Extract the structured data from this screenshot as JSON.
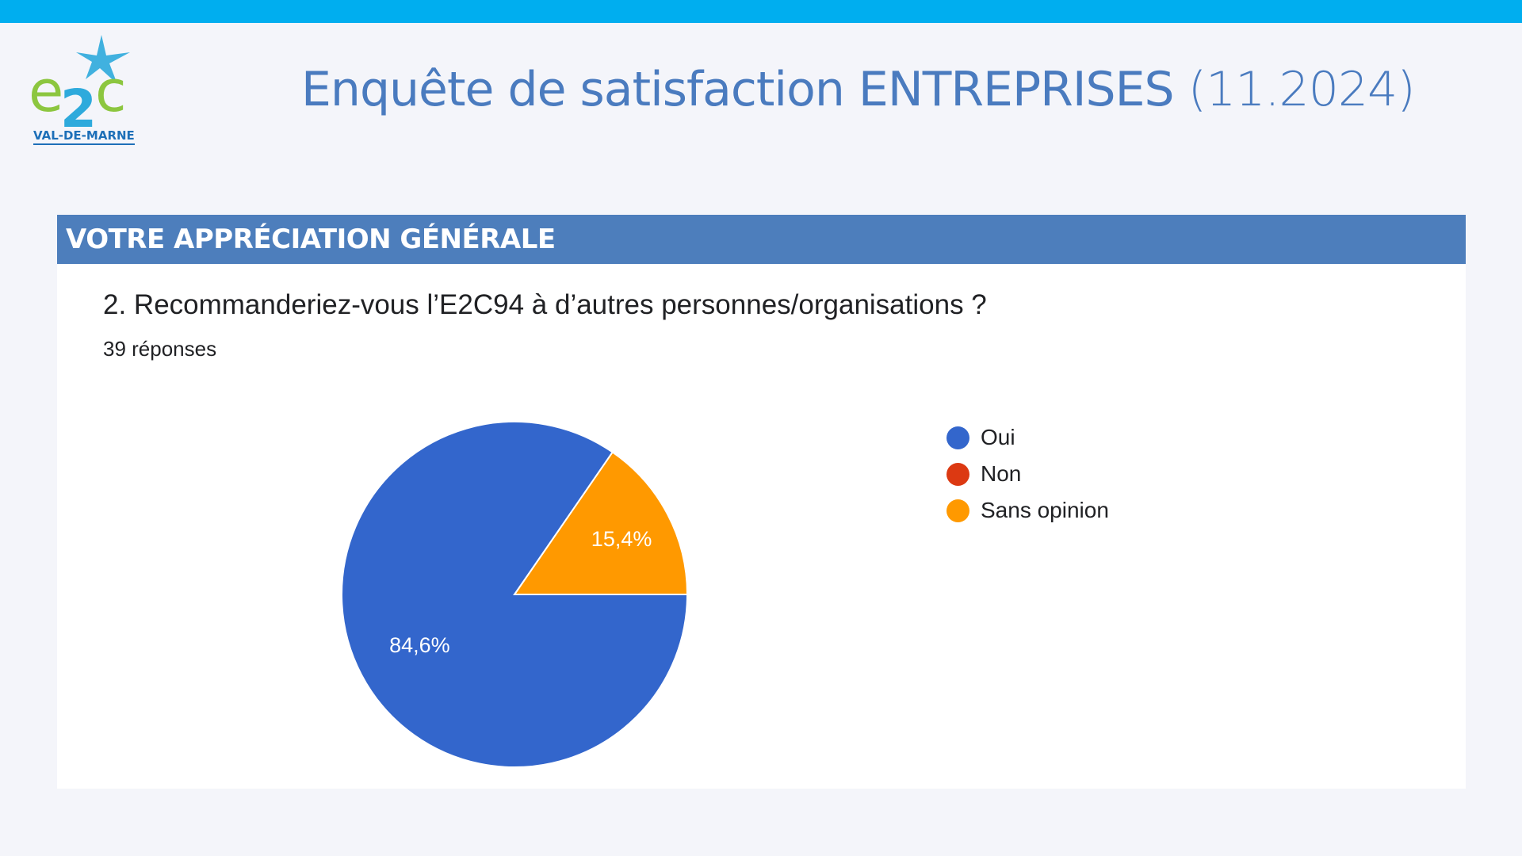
{
  "header": {
    "title_main": "Enquête de satisfaction ENTREPRISES",
    "title_date": "(11.2024)"
  },
  "logo": {
    "text": "e2c",
    "subtitle": "VAL-DE-MARNE"
  },
  "section": {
    "title": "VOTRE APPRÉCIATION GÉNÉRALE"
  },
  "question": {
    "text": "2. Recommanderiez-vous l’E2C94 à d’autres personnes/organisations ?",
    "responses": "39 réponses"
  },
  "colors": {
    "accent_bar": "#00aeef",
    "section_header": "#4d7ebc",
    "title": "#4a7bbf"
  },
  "chart_data": {
    "type": "pie",
    "categories": [
      "Oui",
      "Non",
      "Sans opinion"
    ],
    "values": [
      84.6,
      0,
      15.4
    ],
    "labels": [
      "84,6%",
      "",
      "15,4%"
    ],
    "colors": [
      "#3366cc",
      "#dc3912",
      "#ff9900"
    ],
    "legend_position": "right"
  }
}
